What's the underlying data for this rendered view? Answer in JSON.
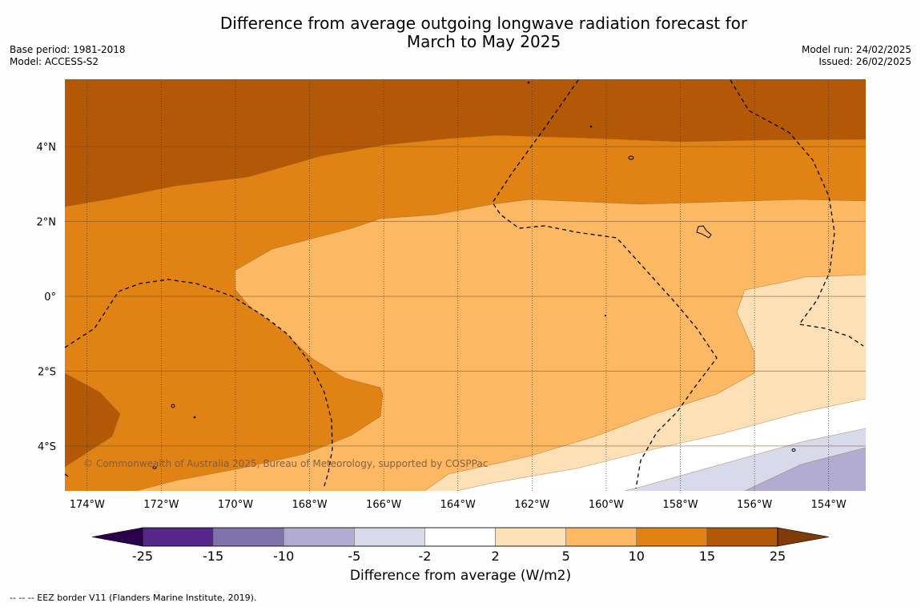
{
  "header": {
    "title_line1": "Difference from average outgoing longwave radiation forecast for",
    "title_line2": "March to May 2025",
    "base_period": "Base period: 1981-2018",
    "model": "Model: ACCESS-S2",
    "model_run": "Model run: 24/02/2025",
    "issued": "Issued: 26/02/2025"
  },
  "map": {
    "lon_range": [
      -174.6,
      -153.0
    ],
    "lat_range": [
      -5.2,
      5.8
    ],
    "x_ticks": [
      {
        "lon": -174,
        "label": "174°W"
      },
      {
        "lon": -172,
        "label": "172°W"
      },
      {
        "lon": -170,
        "label": "170°W"
      },
      {
        "lon": -168,
        "label": "168°W"
      },
      {
        "lon": -166,
        "label": "166°W"
      },
      {
        "lon": -164,
        "label": "164°W"
      },
      {
        "lon": -162,
        "label": "162°W"
      },
      {
        "lon": -160,
        "label": "160°W"
      },
      {
        "lon": -158,
        "label": "158°W"
      },
      {
        "lon": -156,
        "label": "156°W"
      },
      {
        "lon": -154,
        "label": "154°W"
      }
    ],
    "y_ticks": [
      {
        "lat": 4,
        "label": "4°N"
      },
      {
        "lat": 2,
        "label": "2°N"
      },
      {
        "lat": 0,
        "label": "0°"
      },
      {
        "lat": -2,
        "label": "2°S"
      },
      {
        "lat": -4,
        "label": "4°S"
      }
    ],
    "copyright": "© Commonwealth of Australia 2025, Bureau of Meteorology, supported by COSPPac"
  },
  "colorbar": {
    "title": "Difference from average (W/m2)",
    "bins": [
      {
        "from": -25,
        "to": -15,
        "color": "#542788"
      },
      {
        "from": -15,
        "to": -10,
        "color": "#8073ac"
      },
      {
        "from": -10,
        "to": -5,
        "color": "#b2abd2"
      },
      {
        "from": -5,
        "to": -2,
        "color": "#d8daeb"
      },
      {
        "from": -2,
        "to": 2,
        "color": "#ffffff"
      },
      {
        "from": 2,
        "to": 5,
        "color": "#fee0b6"
      },
      {
        "from": 5,
        "to": 10,
        "color": "#fdb863"
      },
      {
        "from": 10,
        "to": 15,
        "color": "#e08214"
      },
      {
        "from": 15,
        "to": 25,
        "color": "#b35806"
      }
    ],
    "under_color": "#2d004b",
    "over_color": "#7f3b08",
    "labels": [
      "-25",
      "-15",
      "-10",
      "-5",
      "-2",
      "2",
      "5",
      "10",
      "15",
      "25"
    ]
  },
  "footnote": "--  --  -- EEZ border V11 (Flanders Marine Institute, 2019)."
}
